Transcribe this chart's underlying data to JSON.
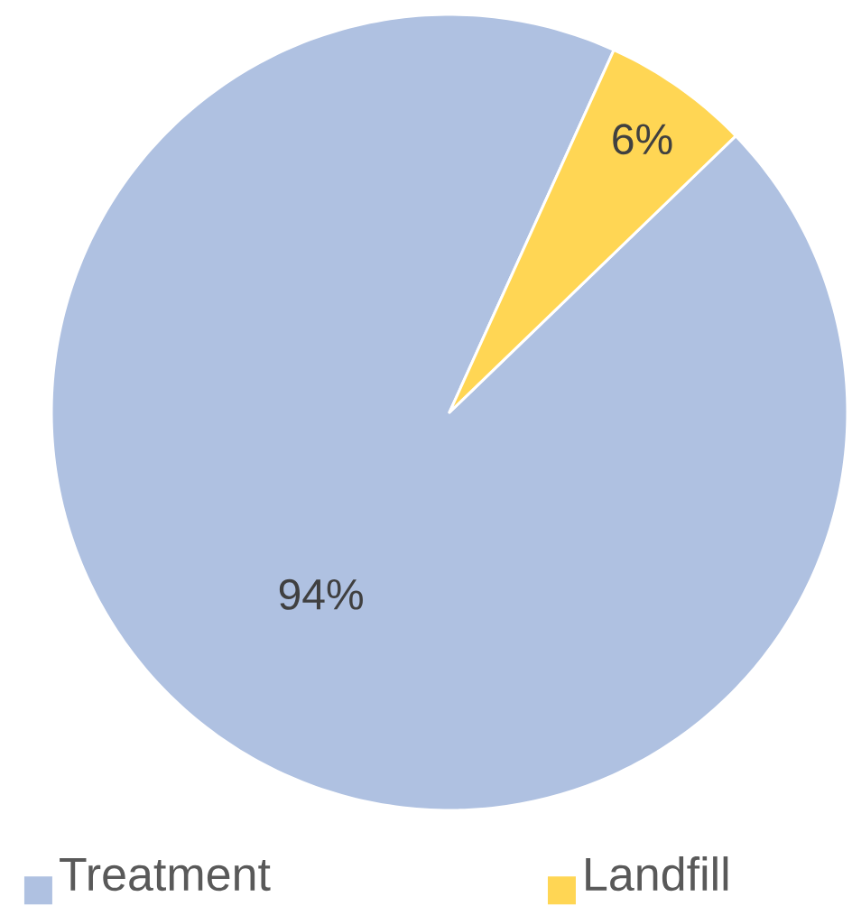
{
  "chart_data": {
    "type": "pie",
    "categories": [
      "Treatment",
      "Landfill"
    ],
    "values": [
      94,
      6
    ],
    "colors": [
      "#afc1e1",
      "#ffd654"
    ],
    "value_labels": [
      "94%",
      "6%"
    ],
    "legend": "bottom"
  }
}
